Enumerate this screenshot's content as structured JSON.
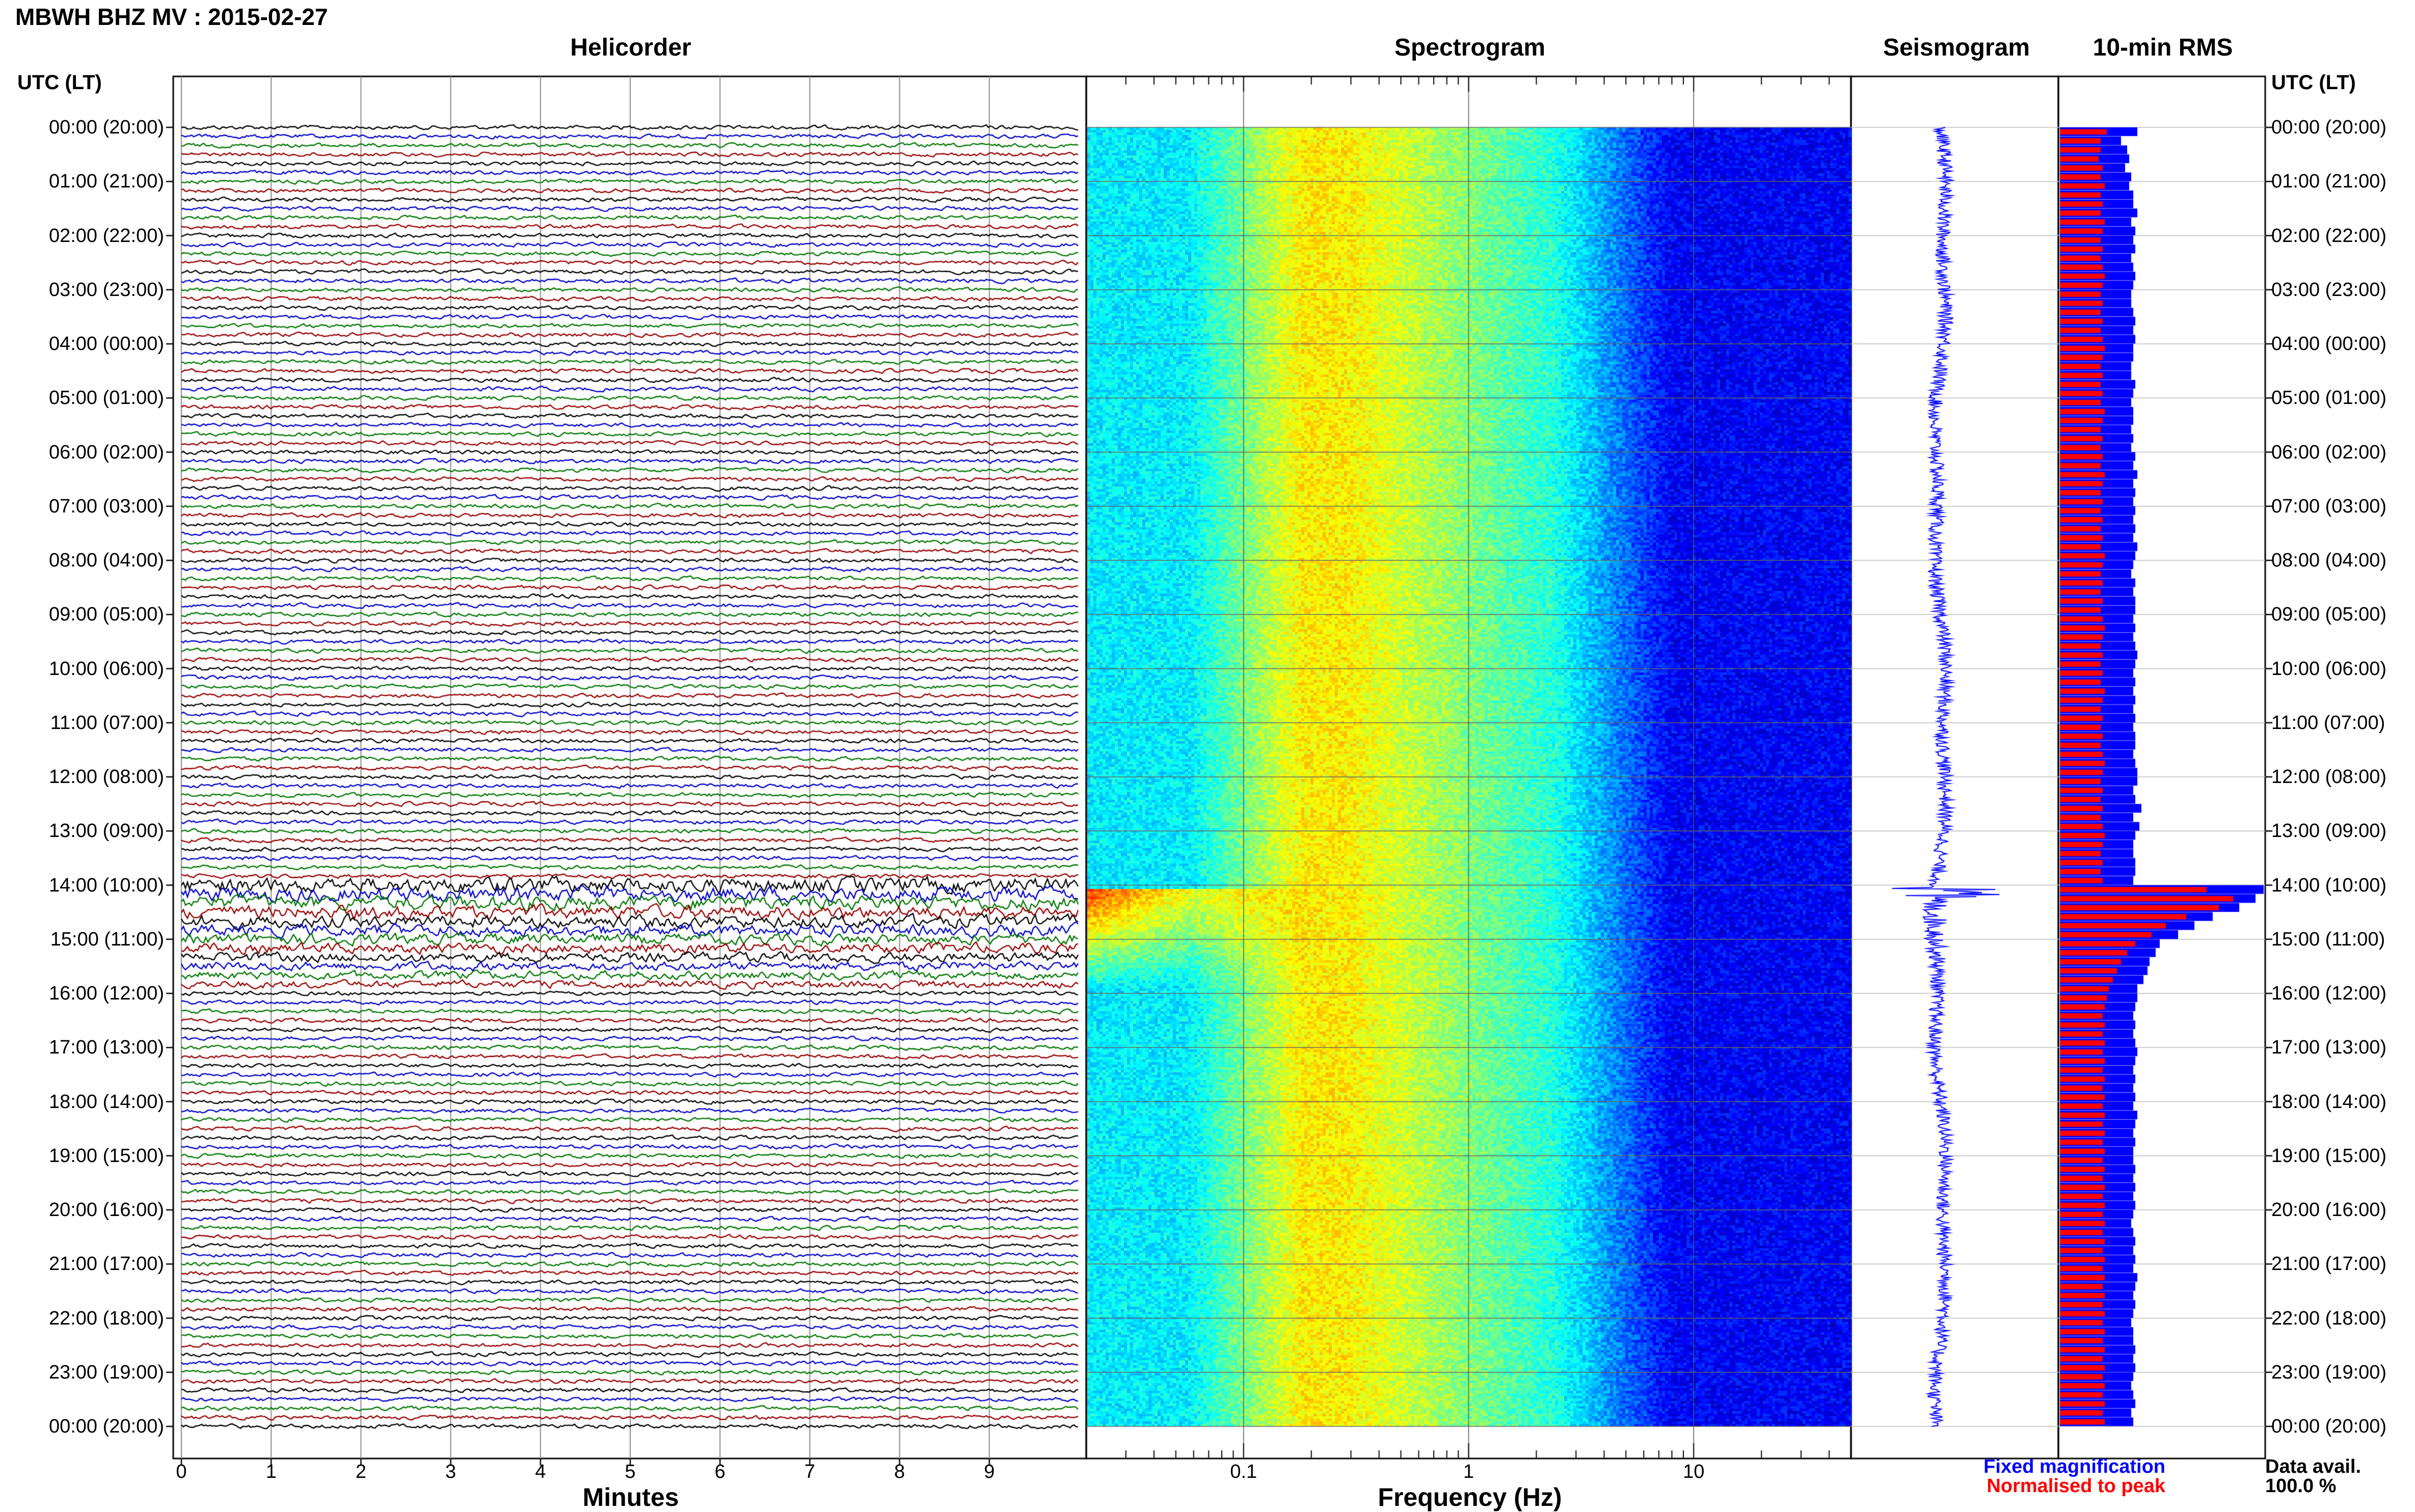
{
  "title": "MBWH BHZ MV : 2015-02-27",
  "panels": {
    "helicorder": "Helicorder",
    "spectrogram": "Spectrogram",
    "seismogram": "Seismogram",
    "rms": "10-min RMS"
  },
  "utc_header": "UTC (LT)",
  "time_labels": [
    "00:00 (20:00)",
    "01:00 (21:00)",
    "02:00 (22:00)",
    "03:00 (23:00)",
    "04:00 (00:00)",
    "05:00 (01:00)",
    "06:00 (02:00)",
    "07:00 (03:00)",
    "08:00 (04:00)",
    "09:00 (05:00)",
    "10:00 (06:00)",
    "11:00 (07:00)",
    "12:00 (08:00)",
    "13:00 (09:00)",
    "14:00 (10:00)",
    "15:00 (11:00)",
    "16:00 (12:00)",
    "17:00 (13:00)",
    "18:00 (14:00)",
    "19:00 (15:00)",
    "20:00 (16:00)",
    "21:00 (17:00)",
    "22:00 (18:00)",
    "23:00 (19:00)",
    "00:00 (20:00)"
  ],
  "helicorder_axis": {
    "label": "Minutes",
    "ticks": [
      "0",
      "1",
      "2",
      "3",
      "4",
      "5",
      "6",
      "7",
      "8",
      "9"
    ]
  },
  "spectrogram_axis": {
    "label": "Frequency (Hz)",
    "ticks": [
      "0.1",
      "1",
      "10"
    ]
  },
  "legend": {
    "fixed": "Fixed magnification",
    "normalised": "Normalised to peak"
  },
  "data_avail": {
    "label": "Data avail.",
    "value": "100.0 %"
  },
  "colors": {
    "fixed": "#0000ff",
    "normalised": "#ff0000",
    "trace_cycle": [
      "#000000",
      "#0000cc",
      "#007700",
      "#990000"
    ]
  },
  "chart_data": [
    {
      "type": "line",
      "name": "Helicorder",
      "xlabel": "Minutes",
      "xlim": [
        0,
        10
      ],
      "rows_per_hour": 6,
      "hours": 24,
      "event_start_hour": 14.0,
      "event_end_hour": 16.0
    },
    {
      "type": "heatmap",
      "name": "Spectrogram",
      "xlabel": "Frequency (Hz)",
      "xscale": "log",
      "xlim": [
        0.02,
        50
      ],
      "event_hour": 14.1
    },
    {
      "type": "line",
      "name": "Seismogram",
      "event_hour": 14.1
    },
    {
      "type": "bar",
      "name": "10-min RMS",
      "series": [
        {
          "name": "Fixed magnification",
          "values": [
            0.38,
            0.3,
            0.33,
            0.34,
            0.32,
            0.35,
            0.34,
            0.36,
            0.36,
            0.38,
            0.35,
            0.37,
            0.36,
            0.37,
            0.35,
            0.36,
            0.37,
            0.36,
            0.35,
            0.35,
            0.36,
            0.37,
            0.36,
            0.37,
            0.36,
            0.36,
            0.35,
            0.35,
            0.37,
            0.36,
            0.35,
            0.36,
            0.36,
            0.35,
            0.36,
            0.35,
            0.37,
            0.36,
            0.38,
            0.36,
            0.37,
            0.36,
            0.37,
            0.36,
            0.37,
            0.36,
            0.38,
            0.37,
            0.36,
            0.35,
            0.37,
            0.36,
            0.37,
            0.37,
            0.36,
            0.37,
            0.36,
            0.37,
            0.38,
            0.37,
            0.36,
            0.37,
            0.36,
            0.37,
            0.36,
            0.37,
            0.36,
            0.37,
            0.37,
            0.36,
            0.37,
            0.38,
            0.38,
            0.36,
            0.37,
            0.4,
            0.36,
            0.39,
            0.37,
            0.36,
            0.36,
            0.37,
            0.37,
            0.36,
            1.0,
            0.96,
            0.88,
            0.75,
            0.66,
            0.58,
            0.49,
            0.47,
            0.44,
            0.43,
            0.41,
            0.38,
            0.38,
            0.37,
            0.36,
            0.37,
            0.36,
            0.37,
            0.38,
            0.37,
            0.36,
            0.37,
            0.36,
            0.37,
            0.36,
            0.38,
            0.37,
            0.36,
            0.37,
            0.36,
            0.36,
            0.37,
            0.36,
            0.37,
            0.36,
            0.37,
            0.36,
            0.35,
            0.36,
            0.37,
            0.36,
            0.37,
            0.36,
            0.38,
            0.37,
            0.36,
            0.37,
            0.36,
            0.35,
            0.36,
            0.36,
            0.37,
            0.36,
            0.37,
            0.36,
            0.35,
            0.36,
            0.37,
            0.35,
            0.36
          ]
        },
        {
          "name": "Normalised to peak",
          "values": [
            0.23,
            0.2,
            0.2,
            0.19,
            0.21,
            0.2,
            0.22,
            0.2,
            0.21,
            0.2,
            0.22,
            0.21,
            0.2,
            0.21,
            0.2,
            0.21,
            0.22,
            0.21,
            0.2,
            0.21,
            0.2,
            0.21,
            0.2,
            0.21,
            0.22,
            0.21,
            0.2,
            0.21,
            0.2,
            0.21,
            0.2,
            0.22,
            0.21,
            0.2,
            0.21,
            0.2,
            0.21,
            0.2,
            0.22,
            0.21,
            0.2,
            0.21,
            0.2,
            0.21,
            0.2,
            0.21,
            0.2,
            0.22,
            0.21,
            0.2,
            0.21,
            0.2,
            0.21,
            0.2,
            0.21,
            0.22,
            0.21,
            0.2,
            0.21,
            0.2,
            0.21,
            0.2,
            0.22,
            0.21,
            0.2,
            0.21,
            0.2,
            0.21,
            0.2,
            0.21,
            0.22,
            0.21,
            0.2,
            0.21,
            0.2,
            0.21,
            0.2,
            0.21,
            0.22,
            0.21,
            0.2,
            0.21,
            0.2,
            0.21,
            0.72,
            0.85,
            0.78,
            0.62,
            0.52,
            0.45,
            0.37,
            0.33,
            0.3,
            0.28,
            0.26,
            0.24,
            0.23,
            0.22,
            0.21,
            0.22,
            0.21,
            0.22,
            0.21,
            0.22,
            0.21,
            0.22,
            0.21,
            0.22,
            0.21,
            0.22,
            0.21,
            0.22,
            0.21,
            0.22,
            0.21,
            0.22,
            0.21,
            0.22,
            0.21,
            0.22,
            0.21,
            0.22,
            0.21,
            0.22,
            0.21,
            0.22,
            0.21,
            0.22,
            0.21,
            0.22,
            0.21,
            0.22,
            0.21,
            0.22,
            0.21,
            0.22,
            0.21,
            0.22,
            0.21,
            0.22,
            0.21,
            0.22,
            0.21,
            0.22
          ]
        }
      ]
    }
  ]
}
